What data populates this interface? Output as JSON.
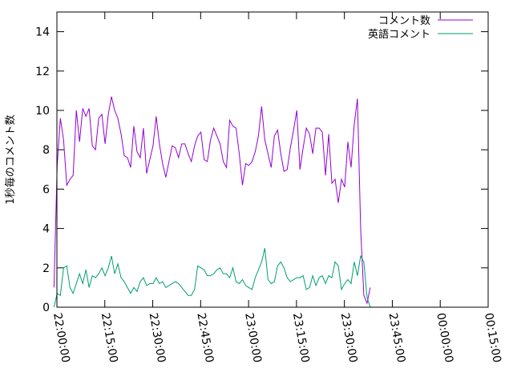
{
  "chart_data": {
    "type": "line",
    "title": "",
    "xlabel": "",
    "ylabel": "1秒毎のコメント数",
    "ylim": [
      0,
      15
    ],
    "yticks": [
      0,
      2,
      4,
      6,
      8,
      10,
      12,
      14
    ],
    "xlim": [
      "22:00:00",
      "00:15:00"
    ],
    "xticks": [
      "22:00:00",
      "22:15:00",
      "22:30:00",
      "22:45:00",
      "23:00:00",
      "23:15:00",
      "23:30:00",
      "23:45:00",
      "00:00:00",
      "00:15:00"
    ],
    "grid": false,
    "legend_position": "top-right",
    "series": [
      {
        "name": "コメント数",
        "color": "#9400d3",
        "points": [
          [
            "21:59:05",
            1.0
          ],
          [
            "22:00:05",
            7.2
          ],
          [
            "22:01:05",
            9.6
          ],
          [
            "22:02:05",
            8.5
          ],
          [
            "22:03:05",
            6.2
          ],
          [
            "22:04:05",
            6.5
          ],
          [
            "22:05:05",
            6.7
          ],
          [
            "22:06:05",
            10.0
          ],
          [
            "22:07:05",
            8.4
          ],
          [
            "22:08:05",
            10.1
          ],
          [
            "22:09:05",
            9.7
          ],
          [
            "22:10:05",
            10.1
          ],
          [
            "22:11:05",
            8.2
          ],
          [
            "22:12:05",
            8.0
          ],
          [
            "22:13:05",
            9.6
          ],
          [
            "22:14:05",
            9.8
          ],
          [
            "22:15:05",
            8.3
          ],
          [
            "22:16:05",
            9.8
          ],
          [
            "22:17:05",
            10.7
          ],
          [
            "22:18:05",
            10.0
          ],
          [
            "22:19:05",
            9.6
          ],
          [
            "22:20:05",
            8.8
          ],
          [
            "22:21:05",
            7.7
          ],
          [
            "22:22:05",
            7.6
          ],
          [
            "22:23:05",
            7.1
          ],
          [
            "22:24:05",
            9.2
          ],
          [
            "22:25:05",
            7.9
          ],
          [
            "22:26:05",
            7.6
          ],
          [
            "22:27:05",
            9.1
          ],
          [
            "22:28:05",
            6.8
          ],
          [
            "22:29:05",
            7.5
          ],
          [
            "22:30:05",
            8.2
          ],
          [
            "22:31:05",
            9.7
          ],
          [
            "22:32:05",
            8.3
          ],
          [
            "22:33:05",
            7.3
          ],
          [
            "22:34:05",
            6.6
          ],
          [
            "22:35:05",
            7.4
          ],
          [
            "22:36:05",
            8.2
          ],
          [
            "22:37:05",
            8.1
          ],
          [
            "22:38:05",
            7.6
          ],
          [
            "22:39:05",
            8.3
          ],
          [
            "22:40:05",
            8.3
          ],
          [
            "22:41:05",
            7.8
          ],
          [
            "22:42:05",
            7.4
          ],
          [
            "22:43:05",
            8.2
          ],
          [
            "22:44:05",
            8.7
          ],
          [
            "22:45:05",
            8.9
          ],
          [
            "22:46:05",
            7.5
          ],
          [
            "22:47:05",
            7.4
          ],
          [
            "22:48:05",
            8.5
          ],
          [
            "22:49:05",
            9.1
          ],
          [
            "22:50:05",
            8.7
          ],
          [
            "22:51:05",
            8.3
          ],
          [
            "22:52:05",
            7.4
          ],
          [
            "22:53:05",
            7.1
          ],
          [
            "22:54:05",
            9.5
          ],
          [
            "22:55:05",
            9.2
          ],
          [
            "22:56:05",
            9.1
          ],
          [
            "22:57:05",
            7.8
          ],
          [
            "22:58:05",
            6.2
          ],
          [
            "22:59:05",
            7.3
          ],
          [
            "23:00:05",
            7.2
          ],
          [
            "23:01:05",
            7.4
          ],
          [
            "23:02:05",
            7.9
          ],
          [
            "23:03:05",
            8.7
          ],
          [
            "23:04:05",
            10.2
          ],
          [
            "23:05:05",
            8.5
          ],
          [
            "23:06:05",
            7.8
          ],
          [
            "23:07:05",
            7.1
          ],
          [
            "23:08:05",
            8.7
          ],
          [
            "23:09:05",
            9.0
          ],
          [
            "23:10:05",
            7.8
          ],
          [
            "23:11:05",
            6.9
          ],
          [
            "23:12:05",
            7.0
          ],
          [
            "23:13:05",
            8.1
          ],
          [
            "23:14:05",
            9.0
          ],
          [
            "23:15:05",
            10.0
          ],
          [
            "23:16:05",
            7.0
          ],
          [
            "23:17:05",
            8.1
          ],
          [
            "23:18:05",
            9.1
          ],
          [
            "23:19:05",
            8.8
          ],
          [
            "23:20:05",
            7.8
          ],
          [
            "23:21:05",
            9.1
          ],
          [
            "23:22:05",
            9.1
          ],
          [
            "23:23:05",
            8.9
          ],
          [
            "23:24:05",
            6.7
          ],
          [
            "23:25:05",
            8.8
          ],
          [
            "23:26:05",
            6.3
          ],
          [
            "23:27:05",
            6.5
          ],
          [
            "23:28:05",
            5.3
          ],
          [
            "23:29:05",
            6.5
          ],
          [
            "23:30:05",
            6.1
          ],
          [
            "23:31:05",
            8.4
          ],
          [
            "23:32:05",
            7.1
          ],
          [
            "23:33:05",
            9.3
          ],
          [
            "23:34:05",
            10.6
          ],
          [
            "23:35:05",
            4.0
          ],
          [
            "23:36:05",
            0.6
          ],
          [
            "23:37:05",
            0.2
          ],
          [
            "23:38:05",
            1.0
          ]
        ]
      },
      {
        "name": "英語コメント",
        "color": "#009e73",
        "points": [
          [
            "21:59:05",
            0.0
          ],
          [
            "22:00:05",
            0.7
          ],
          [
            "22:01:05",
            0.6
          ],
          [
            "22:02:05",
            2.0
          ],
          [
            "22:03:05",
            2.1
          ],
          [
            "22:04:05",
            1.0
          ],
          [
            "22:05:05",
            0.7
          ],
          [
            "22:06:05",
            1.2
          ],
          [
            "22:07:05",
            1.7
          ],
          [
            "22:08:05",
            1.2
          ],
          [
            "22:09:05",
            1.9
          ],
          [
            "22:10:05",
            1.0
          ],
          [
            "22:11:05",
            1.6
          ],
          [
            "22:12:05",
            1.5
          ],
          [
            "22:13:05",
            1.7
          ],
          [
            "22:14:05",
            2.0
          ],
          [
            "22:15:05",
            1.6
          ],
          [
            "22:16:05",
            2.0
          ],
          [
            "22:17:05",
            2.6
          ],
          [
            "22:18:05",
            1.7
          ],
          [
            "22:19:05",
            2.2
          ],
          [
            "22:20:05",
            1.5
          ],
          [
            "22:21:05",
            1.3
          ],
          [
            "22:22:05",
            1.0
          ],
          [
            "22:23:05",
            0.7
          ],
          [
            "22:24:05",
            1.0
          ],
          [
            "22:25:05",
            0.8
          ],
          [
            "22:26:05",
            1.3
          ],
          [
            "22:27:05",
            1.5
          ],
          [
            "22:28:05",
            1.1
          ],
          [
            "22:29:05",
            1.2
          ],
          [
            "22:30:05",
            1.2
          ],
          [
            "22:31:05",
            1.5
          ],
          [
            "22:32:05",
            1.2
          ],
          [
            "22:33:05",
            1.3
          ],
          [
            "22:34:05",
            1.0
          ],
          [
            "22:35:05",
            1.1
          ],
          [
            "22:36:05",
            1.2
          ],
          [
            "22:37:05",
            1.3
          ],
          [
            "22:38:05",
            1.2
          ],
          [
            "22:39:05",
            1.0
          ],
          [
            "22:40:05",
            0.8
          ],
          [
            "22:41:05",
            0.6
          ],
          [
            "22:42:05",
            0.6
          ],
          [
            "22:43:05",
            0.9
          ],
          [
            "22:44:05",
            2.1
          ],
          [
            "22:45:05",
            2.0
          ],
          [
            "22:46:05",
            1.9
          ],
          [
            "22:47:05",
            1.6
          ],
          [
            "22:48:05",
            1.6
          ],
          [
            "22:49:05",
            1.7
          ],
          [
            "22:50:05",
            1.9
          ],
          [
            "22:51:05",
            2.0
          ],
          [
            "22:52:05",
            1.7
          ],
          [
            "22:53:05",
            1.7
          ],
          [
            "22:54:05",
            1.5
          ],
          [
            "22:55:05",
            2.0
          ],
          [
            "22:56:05",
            1.3
          ],
          [
            "22:57:05",
            1.2
          ],
          [
            "22:58:05",
            1.4
          ],
          [
            "22:59:05",
            1.1
          ],
          [
            "23:00:05",
            1.0
          ],
          [
            "23:01:05",
            0.9
          ],
          [
            "23:02:05",
            1.5
          ],
          [
            "23:03:05",
            1.9
          ],
          [
            "23:04:05",
            2.3
          ],
          [
            "23:05:05",
            3.0
          ],
          [
            "23:06:05",
            1.4
          ],
          [
            "23:07:05",
            1.2
          ],
          [
            "23:08:05",
            1.3
          ],
          [
            "23:09:05",
            2.1
          ],
          [
            "23:10:05",
            2.3
          ],
          [
            "23:11:05",
            2.0
          ],
          [
            "23:12:05",
            1.5
          ],
          [
            "23:13:05",
            1.3
          ],
          [
            "23:14:05",
            1.4
          ],
          [
            "23:15:05",
            1.5
          ],
          [
            "23:16:05",
            1.5
          ],
          [
            "23:17:05",
            1.6
          ],
          [
            "23:18:05",
            0.9
          ],
          [
            "23:19:05",
            1.0
          ],
          [
            "23:20:05",
            1.6
          ],
          [
            "23:21:05",
            1.1
          ],
          [
            "23:22:05",
            1.5
          ],
          [
            "23:23:05",
            1.6
          ],
          [
            "23:24:05",
            1.2
          ],
          [
            "23:25:05",
            1.6
          ],
          [
            "23:26:05",
            1.5
          ],
          [
            "23:27:05",
            2.3
          ],
          [
            "23:28:05",
            2.1
          ],
          [
            "23:29:05",
            0.9
          ],
          [
            "23:30:05",
            1.2
          ],
          [
            "23:31:05",
            1.4
          ],
          [
            "23:32:05",
            1.2
          ],
          [
            "23:33:05",
            2.3
          ],
          [
            "23:34:05",
            1.6
          ],
          [
            "23:35:05",
            2.6
          ],
          [
            "23:36:05",
            2.3
          ],
          [
            "23:37:05",
            0.5
          ],
          [
            "23:38:05",
            0.0
          ]
        ]
      }
    ]
  }
}
